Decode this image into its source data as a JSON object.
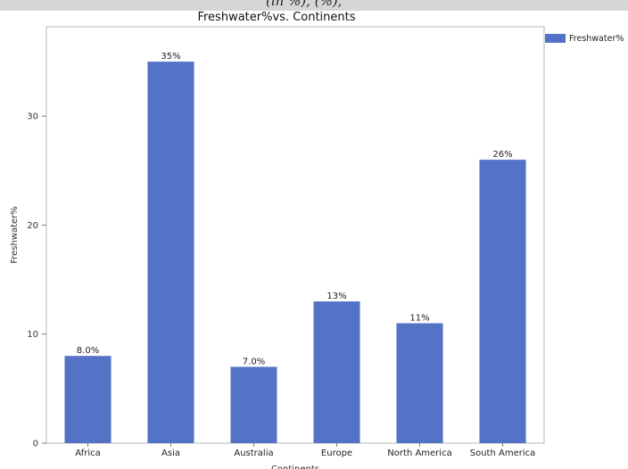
{
  "header": {
    "cropped_text": "(in %), (%),"
  },
  "chart_data": {
    "type": "bar",
    "title": "Freshwater%vs. Continents",
    "xlabel": "Continents",
    "ylabel": "Freshwater%",
    "categories": [
      "Africa",
      "Asia",
      "Australia",
      "Europe",
      "North America",
      "South America"
    ],
    "series": [
      {
        "name": "Freshwater%",
        "values": [
          8.0,
          35,
          7.0,
          13,
          11,
          26
        ],
        "labels": [
          "8.0%",
          "35%",
          "7.0%",
          "13%",
          "11%",
          "26%"
        ],
        "color": "#5473c6"
      }
    ],
    "yticks": [
      0,
      10,
      20,
      30
    ],
    "ylim": [
      0,
      38.2
    ],
    "grid": false,
    "legend_position": "right"
  }
}
